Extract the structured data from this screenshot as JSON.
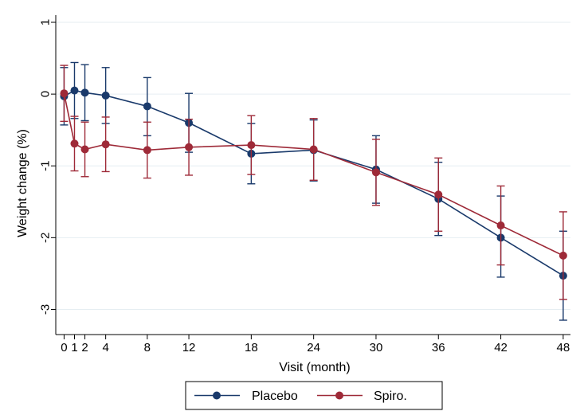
{
  "chart_data": {
    "type": "line",
    "title": "",
    "xlabel": "Visit (month)",
    "ylabel": "Weight change (%)",
    "x": [
      0,
      1,
      2,
      4,
      8,
      12,
      18,
      24,
      30,
      36,
      42,
      48
    ],
    "xticks": [
      0,
      1,
      2,
      4,
      8,
      12,
      18,
      24,
      30,
      36,
      42,
      48
    ],
    "xlim": [
      -0.8,
      48.7
    ],
    "yticks": [
      1,
      0,
      -1,
      -2,
      -3
    ],
    "ylim": [
      -3.35,
      1.1
    ],
    "grid": true,
    "legend_position": "bottom",
    "series": [
      {
        "name": "Placebo",
        "color": "#1a3a6b",
        "values": [
          -0.03,
          0.05,
          0.02,
          -0.02,
          -0.17,
          -0.4,
          -0.83,
          -0.78,
          -1.05,
          -1.46,
          -2.0,
          -2.53
        ],
        "lower": [
          -0.43,
          -0.34,
          -0.37,
          -0.41,
          -0.58,
          -0.81,
          -1.25,
          -1.21,
          -1.52,
          -1.97,
          -2.55,
          -3.15
        ],
        "upper": [
          0.37,
          0.44,
          0.41,
          0.37,
          0.23,
          0.01,
          -0.41,
          -0.36,
          -0.58,
          -0.95,
          -1.42,
          -1.91
        ]
      },
      {
        "name": "Spiro.",
        "color": "#9e2a38",
        "values": [
          0.01,
          -0.69,
          -0.77,
          -0.7,
          -0.78,
          -0.74,
          -0.71,
          -0.77,
          -1.09,
          -1.4,
          -1.83,
          -2.25
        ],
        "lower": [
          -0.38,
          -1.07,
          -1.15,
          -1.08,
          -1.17,
          -1.13,
          -1.12,
          -1.2,
          -1.55,
          -1.91,
          -2.38,
          -2.86
        ],
        "upper": [
          0.4,
          -0.31,
          -0.39,
          -0.32,
          -0.39,
          -0.35,
          -0.3,
          -0.34,
          -0.63,
          -0.89,
          -1.28,
          -1.64
        ]
      }
    ]
  }
}
